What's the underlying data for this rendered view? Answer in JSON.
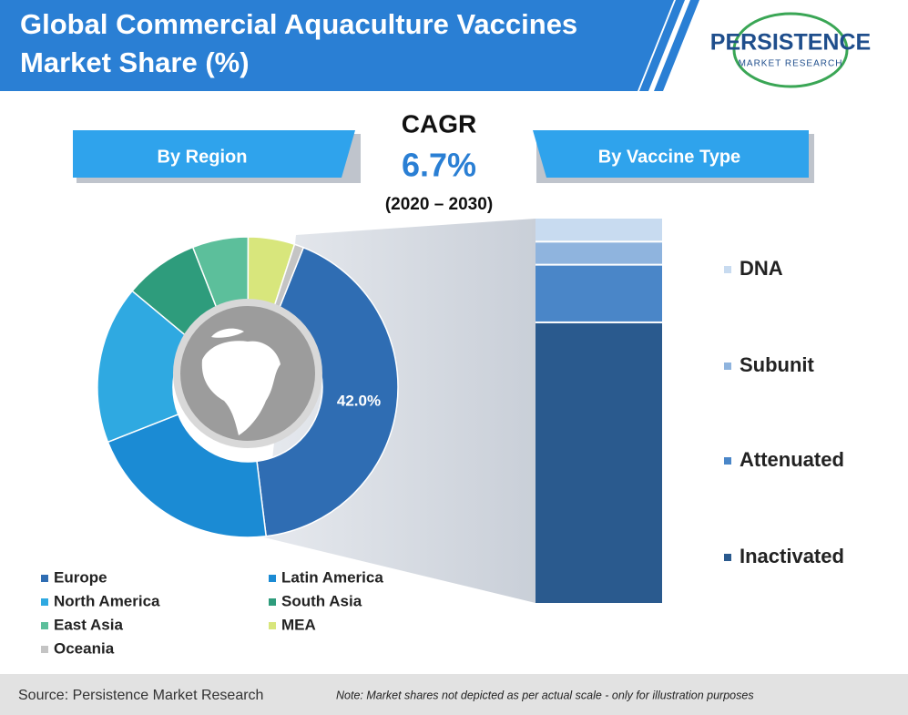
{
  "title": "Global Commercial Aquaculture Vaccines Market Share (%)",
  "logo": {
    "name": "PERSISTENCE",
    "tagline": "MARKET RESEARCH"
  },
  "cagr": {
    "label": "CAGR",
    "value": "6.7%",
    "period": "(2020 – 2030)"
  },
  "source": "Source: Persistence Market Research",
  "note": "Note: Market shares not depicted as per actual scale - only for illustration purposes",
  "chart_data": [
    {
      "type": "donut",
      "title": "By Region",
      "categories": [
        "Europe",
        "Latin America",
        "North America",
        "South Asia",
        "East Asia",
        "MEA",
        "Oceania"
      ],
      "values": [
        42.0,
        21,
        17,
        8,
        6,
        5,
        1
      ],
      "value_labels": [
        "42.0%",
        null,
        null,
        null,
        null,
        null,
        null
      ],
      "colors": [
        "#2f6db3",
        "#1b8bd4",
        "#2fa9e1",
        "#2e9c7c",
        "#5cbf9b",
        "#d8e67c",
        "#c4c4c4"
      ]
    },
    {
      "type": "bar",
      "stacked": true,
      "title": "By Vaccine Type",
      "ylim": [
        0,
        100
      ],
      "series": [
        {
          "name": "Inactivated",
          "color": "#2a5a8e",
          "values": [
            73
          ]
        },
        {
          "name": "Attenuated",
          "color": "#4a86c8",
          "values": [
            15
          ]
        },
        {
          "name": "Subunit",
          "color": "#8fb4de",
          "values": [
            6
          ]
        },
        {
          "name": "DNA",
          "color": "#c8dbf0",
          "values": [
            6
          ]
        }
      ]
    }
  ]
}
